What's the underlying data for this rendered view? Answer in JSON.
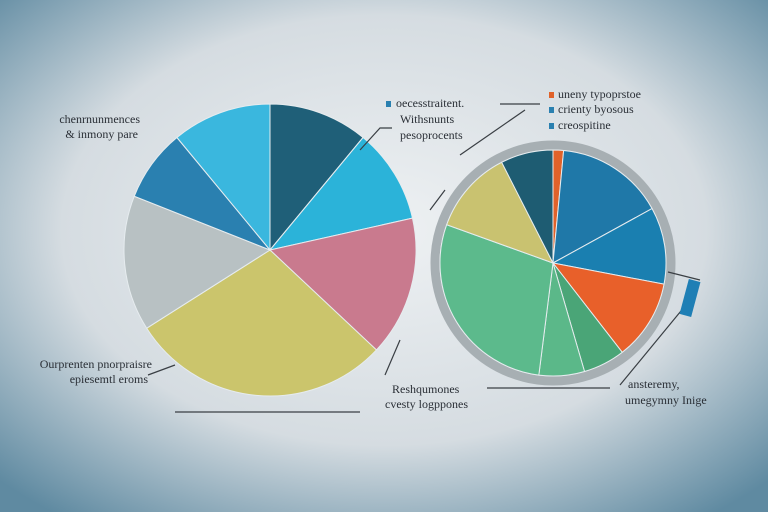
{
  "chart_data": [
    {
      "type": "pie",
      "values": [
        11,
        10.5,
        15.5,
        29,
        15,
        8,
        11
      ],
      "colors": [
        "#1f5f78",
        "#2bb3d9",
        "#c97a8e",
        "#cbc56c",
        "#b8c1c3",
        "#2a80b0",
        "#3ab7de"
      ],
      "annotations": [
        "chenrnunmences",
        "& inmony pare",
        "Ourprenten pnorpraisre",
        "epiesemtl eroms"
      ]
    },
    {
      "type": "pie",
      "values": [
        1.5,
        15.5,
        11,
        11.5,
        6,
        6.5,
        28.5,
        12,
        7.5
      ],
      "colors": [
        "#e0622a",
        "#1f78a8",
        "#1a7fb0",
        "#e8602a",
        "#4aa577",
        "#5bb889",
        "#5cba8c",
        "#c9c270",
        "#1e5c72"
      ],
      "annotations": [
        "oecesstraitent.",
        "Withsnunts",
        "pesoprocents",
        "uneny typoprstoe",
        "crienty byosous",
        "creospitine",
        "Reshqumones",
        "cvesty logppones",
        "ansteremy,",
        "umegymny Inige"
      ]
    }
  ]
}
